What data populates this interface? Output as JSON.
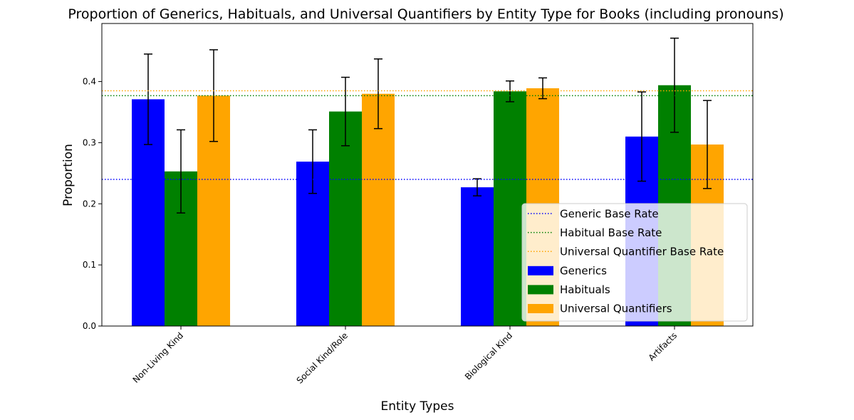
{
  "chart_data": {
    "type": "bar",
    "title": "Proportion of Generics, Habituals, and Universal Quantifiers by Entity Type for Books (including pronouns)",
    "xlabel": "Entity Types",
    "ylabel": "Proportion",
    "ylim": [
      0,
      0.495
    ],
    "yticks": [
      "0.0",
      "0.1",
      "0.2",
      "0.3",
      "0.4"
    ],
    "categories": [
      "Non-Living Kind",
      "Social Kind/Role",
      "Biological Kind",
      "Artifacts"
    ],
    "series": [
      {
        "name": "Generics",
        "color": "#0000ff",
        "values": [
          0.371,
          0.269,
          0.227,
          0.31
        ],
        "errors": [
          0.074,
          0.052,
          0.014,
          0.073
        ]
      },
      {
        "name": "Habituals",
        "color": "#008000",
        "values": [
          0.253,
          0.351,
          0.384,
          0.394
        ],
        "errors": [
          0.068,
          0.056,
          0.017,
          0.077
        ]
      },
      {
        "name": "Universal Quantifiers",
        "color": "#ffa500",
        "values": [
          0.377,
          0.38,
          0.389,
          0.297
        ],
        "errors": [
          0.075,
          0.057,
          0.017,
          0.072
        ]
      }
    ],
    "base_rates": [
      {
        "name": "Generic Base Rate",
        "color": "#0000ff",
        "value": 0.24
      },
      {
        "name": "Habitual Base Rate",
        "color": "#008000",
        "value": 0.377
      },
      {
        "name": "Universal Quantifier Base Rate",
        "color": "#ffa500",
        "value": 0.385
      }
    ],
    "legend_position": "lower right",
    "grid": false
  }
}
